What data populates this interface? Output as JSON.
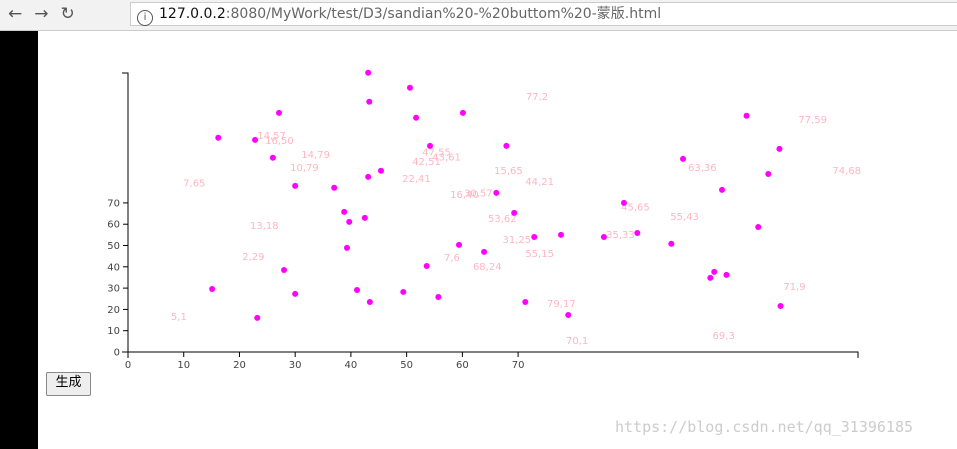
{
  "browser": {
    "url_host": "127.0.0.2",
    "url_path": ":8080/MyWork/test/D3/sandian%20-%20buttom%20-蒙版.html"
  },
  "button": "生成",
  "watermark": "https://blog.csdn.net/qq_31396185",
  "chart_data": {
    "type": "scatter",
    "xlim": [
      0,
      131
    ],
    "ylim": [
      0,
      131
    ],
    "xticks": [
      0,
      10,
      20,
      30,
      40,
      50,
      60,
      70
    ],
    "yticks": [
      0,
      10,
      20,
      30,
      40,
      50,
      60,
      70
    ],
    "series": [
      {
        "color": "#ff00ff",
        "x": [
          43.1,
          43.3,
          50.6,
          60.1,
          51.7,
          27.1,
          16.2,
          22.8,
          54.2,
          67.9,
          26.0,
          45.4,
          43.1,
          30.0,
          37.0,
          66.1,
          38.8,
          69.3,
          42.5,
          39.7,
          72.9,
          77.7,
          85.4,
          91.4,
          89.0,
          97.5,
          99.6,
          111.0,
          116.9,
          114.9,
          106.6,
          113.1,
          59.4,
          39.3,
          63.9,
          53.6,
          28.0,
          105.2,
          107.4,
          104.5,
          15.1,
          41.1,
          30.0,
          49.4,
          55.7,
          43.4,
          71.3,
          117.1,
          79.0,
          23.2
        ],
        "values": [
          131.1,
          117.5,
          124.1,
          112.3,
          110.0,
          112.3,
          100.6,
          99.6,
          96.8,
          96.8,
          91.2,
          85.1,
          82.2,
          78.0,
          77.1,
          74.7,
          65.8,
          65.3,
          63.0,
          61.1,
          54.0,
          55.0,
          54.0,
          55.9,
          70.0,
          50.8,
          90.7,
          110.9,
          95.4,
          83.6,
          76.1,
          58.7,
          50.3,
          48.9,
          47.0,
          40.4,
          38.5,
          37.6,
          36.2,
          34.8,
          29.6,
          29.1,
          27.3,
          28.2,
          25.8,
          23.5,
          23.5,
          21.6,
          17.4,
          16.0
        ]
      }
    ],
    "annotation_color": "#ffb6c1",
    "annotations": [
      {
        "text": "77,2",
        "x": 71.4,
        "y": 118.4
      },
      {
        "text": "77,59",
        "x": 120.3,
        "y": 107.6
      },
      {
        "text": "74,68",
        "x": 126.4,
        "y": 83.6
      },
      {
        "text": "14,57",
        "x": 23.2,
        "y": 100.1
      },
      {
        "text": "16,50",
        "x": 24.6,
        "y": 97.7
      },
      {
        "text": "14,79",
        "x": 31.1,
        "y": 91.2
      },
      {
        "text": "10,79",
        "x": 29.1,
        "y": 85.1
      },
      {
        "text": "7,65",
        "x": 9.9,
        "y": 77.6
      },
      {
        "text": "47,55",
        "x": 52.8,
        "y": 92.2
      },
      {
        "text": "42,51",
        "x": 51.0,
        "y": 87.9
      },
      {
        "text": "43,61",
        "x": 54.6,
        "y": 89.8
      },
      {
        "text": "22,41",
        "x": 49.2,
        "y": 79.9
      },
      {
        "text": "15,65",
        "x": 65.7,
        "y": 83.6
      },
      {
        "text": "44,21",
        "x": 71.3,
        "y": 78.5
      },
      {
        "text": "16,40",
        "x": 57.8,
        "y": 72.4
      },
      {
        "text": "30,57",
        "x": 60.3,
        "y": 72.9
      },
      {
        "text": "63,36",
        "x": 100.5,
        "y": 85.1
      },
      {
        "text": "45,65",
        "x": 88.5,
        "y": 66.4
      },
      {
        "text": "55,43",
        "x": 97.3,
        "y": 62.0
      },
      {
        "text": "53,62",
        "x": 64.6,
        "y": 61.1
      },
      {
        "text": "13,18",
        "x": 21.9,
        "y": 57.8
      },
      {
        "text": "35,33",
        "x": 85.8,
        "y": 53.5
      },
      {
        "text": "31,25",
        "x": 67.2,
        "y": 51.2
      },
      {
        "text": "55,15",
        "x": 71.3,
        "y": 44.6
      },
      {
        "text": "2,29",
        "x": 20.5,
        "y": 43.2
      },
      {
        "text": "7,6",
        "x": 56.7,
        "y": 42.8
      },
      {
        "text": "68,24",
        "x": 61.9,
        "y": 38.5
      },
      {
        "text": "71,9",
        "x": 117.6,
        "y": 29.1
      },
      {
        "text": "5,1",
        "x": 7.7,
        "y": 15.0
      },
      {
        "text": "79,17",
        "x": 75.2,
        "y": 21.1
      },
      {
        "text": "70,1",
        "x": 78.6,
        "y": 3.8
      },
      {
        "text": "69,3",
        "x": 104.9,
        "y": 6.1
      }
    ]
  }
}
